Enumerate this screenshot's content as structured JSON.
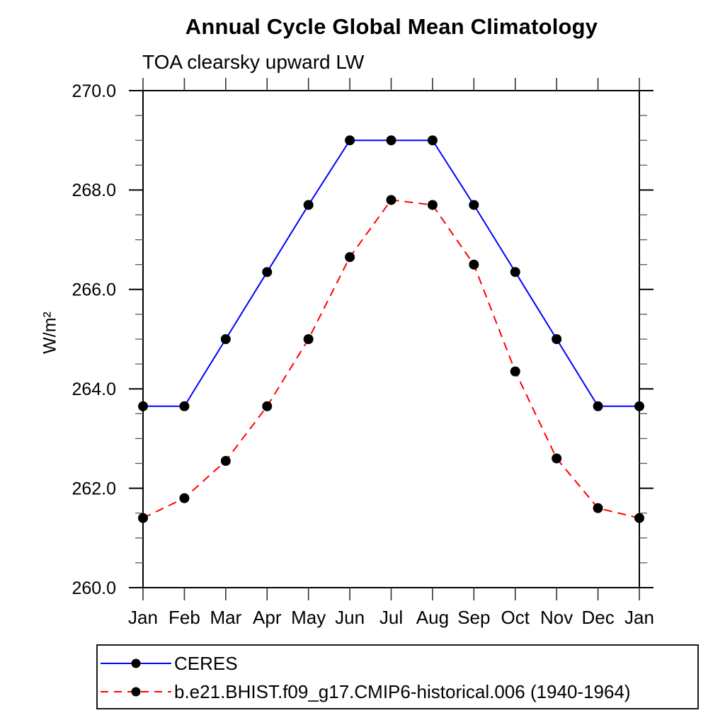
{
  "chart_data": {
    "type": "line",
    "title": "Annual Cycle Global Mean Climatology",
    "subtitle": "TOA clearsky upward LW",
    "ylabel": "W/m²",
    "categories": [
      "Jan",
      "Feb",
      "Mar",
      "Apr",
      "May",
      "Jun",
      "Jul",
      "Aug",
      "Sep",
      "Oct",
      "Nov",
      "Dec",
      "Jan"
    ],
    "ylim": [
      260.0,
      270.0
    ],
    "yticks": {
      "major_values": [
        260,
        262,
        264,
        266,
        268,
        270
      ],
      "major_labels": [
        "260.0",
        "262.0",
        "264.0",
        "266.0",
        "268.0",
        "270.0"
      ],
      "minor_step": 0.5
    },
    "grid": false,
    "legend_position": "bottom-left",
    "frame_color": "#000000",
    "series": [
      {
        "name": "CERES",
        "line_color": "#0000ff",
        "line_style": "solid",
        "marker": "filled-circle",
        "marker_color": "#000000",
        "values": [
          263.65,
          263.65,
          265.0,
          266.35,
          267.7,
          269.0,
          269.0,
          269.0,
          267.7,
          266.35,
          265.0,
          263.65,
          263.65
        ]
      },
      {
        "name": "b.e21.BHIST.f09_g17.CMIP6-historical.006 (1940-1964)",
        "line_color": "#ff0000",
        "line_style": "dashed",
        "marker": "filled-circle",
        "marker_color": "#000000",
        "values": [
          261.4,
          261.8,
          262.55,
          263.65,
          265.0,
          266.65,
          267.8,
          267.7,
          266.5,
          264.35,
          262.6,
          261.6,
          261.4
        ]
      }
    ]
  }
}
